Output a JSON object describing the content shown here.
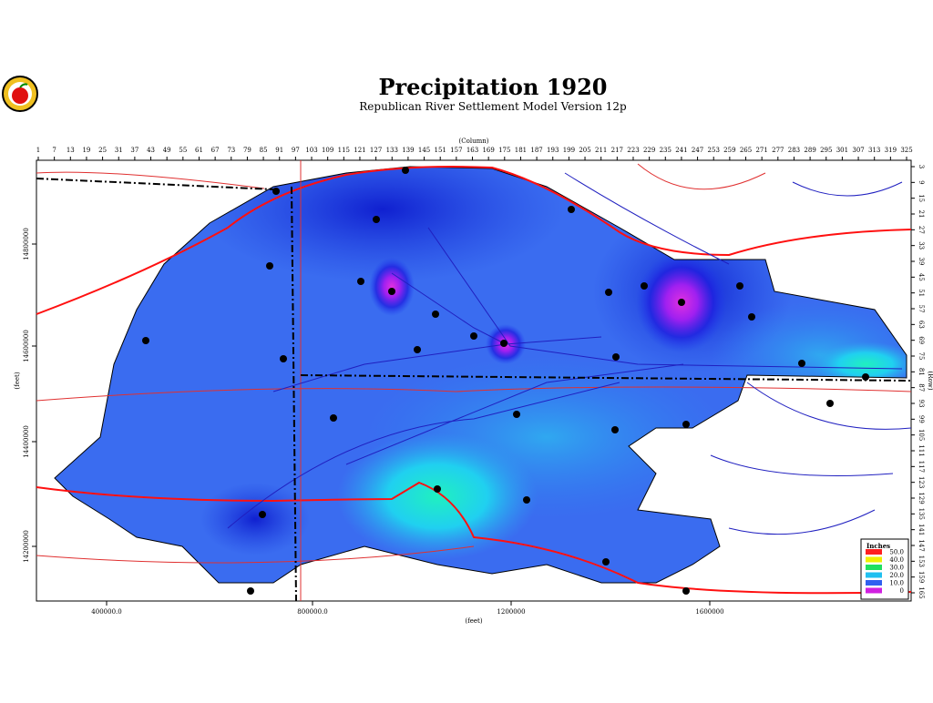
{
  "header": {
    "title": "Precipitation 1920",
    "subtitle": "Republican River Settlement Model Version 12p"
  },
  "map": {
    "top_axis_label": "(Column)",
    "top_ticks": [
      "1",
      "7",
      "13",
      "19",
      "25",
      "31",
      "37",
      "43",
      "49",
      "55",
      "61",
      "67",
      "73",
      "79",
      "85",
      "91",
      "97",
      "103",
      "109",
      "115",
      "121",
      "127",
      "133",
      "139",
      "145",
      "151",
      "157",
      "163",
      "169",
      "175",
      "181",
      "187",
      "193",
      "199",
      "205",
      "211",
      "217",
      "223",
      "229",
      "235",
      "241",
      "247",
      "253",
      "259",
      "265",
      "271",
      "277",
      "283",
      "289",
      "295",
      "301",
      "307",
      "313",
      "319",
      "325"
    ],
    "right_axis_label": "(Row)",
    "right_ticks": [
      "3",
      "9",
      "15",
      "21",
      "27",
      "33",
      "39",
      "45",
      "51",
      "57",
      "63",
      "69",
      "75",
      "81",
      "87",
      "93",
      "99",
      "105",
      "111",
      "117",
      "123",
      "129",
      "135",
      "141",
      "147",
      "153",
      "159",
      "165"
    ],
    "bottom_axis_label": "(feet)",
    "bottom_ticks": [
      "400000.0",
      "800000.0",
      "1200000",
      "1600000"
    ],
    "left_axis_label": "(feet)",
    "left_ticks": [
      "14800000",
      "14600000",
      "14400000",
      "14200000"
    ],
    "legend": {
      "title": "Inches",
      "entries": [
        {
          "label": "50.0",
          "color": "#ff2020"
        },
        {
          "label": "40.0",
          "color": "#f0f000"
        },
        {
          "label": "30.0",
          "color": "#20e060"
        },
        {
          "label": "20.0",
          "color": "#20c0f0"
        },
        {
          "label": "10.0",
          "color": "#3060f0"
        },
        {
          "label": "0",
          "color": "#d020e0"
        }
      ]
    }
  }
}
